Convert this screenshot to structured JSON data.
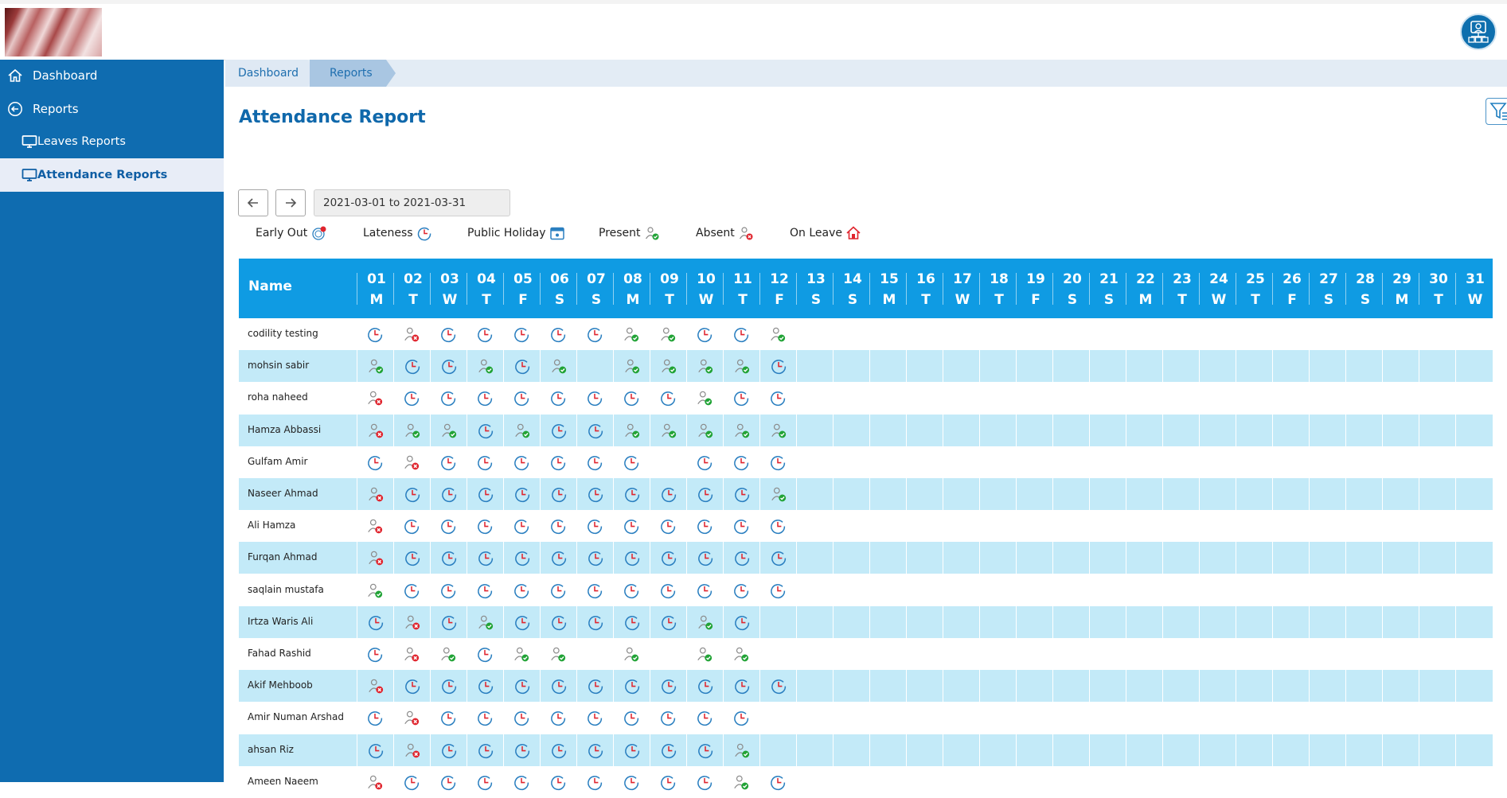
{
  "header": {
    "logo": "logo",
    "avatar": "user-avatar-icon"
  },
  "sidebar": {
    "items": [
      {
        "label": "Dashboard",
        "icon": "home-icon"
      },
      {
        "label": "Reports",
        "icon": "back-arrow-icon"
      },
      {
        "label": "Leaves Reports",
        "icon": "monitor-icon"
      },
      {
        "label": "Attendance Reports",
        "icon": "monitor-icon"
      }
    ]
  },
  "breadcrumb": [
    "Dashboard",
    "Reports"
  ],
  "page": {
    "title": "Attendance Report"
  },
  "date_range": "2021-03-01 to 2021-03-31",
  "legend": {
    "early_out": "Early Out",
    "lateness": "Lateness",
    "public_holiday": "Public Holiday",
    "present": "Present",
    "absent": "Absent",
    "on_leave": "On Leave"
  },
  "table": {
    "name_header": "Name",
    "days": [
      {
        "num": "01",
        "wd": "M"
      },
      {
        "num": "02",
        "wd": "T"
      },
      {
        "num": "03",
        "wd": "W"
      },
      {
        "num": "04",
        "wd": "T"
      },
      {
        "num": "05",
        "wd": "F"
      },
      {
        "num": "06",
        "wd": "S"
      },
      {
        "num": "07",
        "wd": "S"
      },
      {
        "num": "08",
        "wd": "M"
      },
      {
        "num": "09",
        "wd": "T"
      },
      {
        "num": "10",
        "wd": "W"
      },
      {
        "num": "11",
        "wd": "T"
      },
      {
        "num": "12",
        "wd": "F"
      },
      {
        "num": "13",
        "wd": "S"
      },
      {
        "num": "14",
        "wd": "S"
      },
      {
        "num": "15",
        "wd": "M"
      },
      {
        "num": "16",
        "wd": "T"
      },
      {
        "num": "17",
        "wd": "W"
      },
      {
        "num": "18",
        "wd": "T"
      },
      {
        "num": "19",
        "wd": "F"
      },
      {
        "num": "20",
        "wd": "S"
      },
      {
        "num": "21",
        "wd": "S"
      },
      {
        "num": "22",
        "wd": "M"
      },
      {
        "num": "23",
        "wd": "T"
      },
      {
        "num": "24",
        "wd": "W"
      },
      {
        "num": "25",
        "wd": "T"
      },
      {
        "num": "26",
        "wd": "F"
      },
      {
        "num": "27",
        "wd": "S"
      },
      {
        "num": "28",
        "wd": "S"
      },
      {
        "num": "29",
        "wd": "M"
      },
      {
        "num": "30",
        "wd": "T"
      },
      {
        "num": "31",
        "wd": "W"
      }
    ],
    "rows": [
      {
        "name": "codility testing",
        "statuses": [
          "L",
          "A",
          "L",
          "L",
          "L",
          "L",
          "L",
          "P",
          "P",
          "L",
          "L",
          "P"
        ]
      },
      {
        "name": "mohsin sabir",
        "statuses": [
          "P",
          "L",
          "L",
          "P",
          "L",
          "P",
          "",
          "P",
          "P",
          "P",
          "P",
          "L"
        ]
      },
      {
        "name": "roha naheed",
        "statuses": [
          "A",
          "L",
          "L",
          "L",
          "L",
          "L",
          "L",
          "L",
          "L",
          "P",
          "L",
          "L"
        ]
      },
      {
        "name": "Hamza Abbassi",
        "statuses": [
          "A",
          "P",
          "P",
          "L",
          "P",
          "L",
          "L",
          "P",
          "P",
          "P",
          "P",
          "P"
        ]
      },
      {
        "name": "Gulfam Amir",
        "statuses": [
          "L",
          "A",
          "L",
          "L",
          "L",
          "L",
          "L",
          "L",
          "",
          "L",
          "L",
          "L"
        ]
      },
      {
        "name": "Naseer Ahmad",
        "statuses": [
          "A",
          "L",
          "L",
          "L",
          "L",
          "L",
          "L",
          "L",
          "L",
          "L",
          "L",
          "P"
        ]
      },
      {
        "name": "Ali Hamza",
        "statuses": [
          "A",
          "L",
          "L",
          "L",
          "L",
          "L",
          "L",
          "L",
          "L",
          "L",
          "L",
          "L"
        ]
      },
      {
        "name": "Furqan Ahmad",
        "statuses": [
          "A",
          "L",
          "L",
          "L",
          "L",
          "L",
          "L",
          "L",
          "L",
          "L",
          "L",
          "L"
        ]
      },
      {
        "name": "saqlain mustafa",
        "statuses": [
          "P",
          "L",
          "L",
          "L",
          "L",
          "L",
          "L",
          "L",
          "L",
          "L",
          "L",
          "L"
        ]
      },
      {
        "name": "Irtza Waris Ali",
        "statuses": [
          "L",
          "A",
          "L",
          "P",
          "L",
          "L",
          "L",
          "L",
          "L",
          "P",
          "L",
          ""
        ]
      },
      {
        "name": "Fahad Rashid",
        "statuses": [
          "L",
          "A",
          "P",
          "L",
          "P",
          "P",
          "",
          "P",
          "",
          "P",
          "P",
          ""
        ]
      },
      {
        "name": "Akif Mehboob",
        "statuses": [
          "A",
          "L",
          "L",
          "L",
          "L",
          "L",
          "L",
          "L",
          "L",
          "L",
          "L",
          "L"
        ]
      },
      {
        "name": "Amir Numan Arshad",
        "statuses": [
          "L",
          "A",
          "L",
          "L",
          "L",
          "L",
          "L",
          "L",
          "L",
          "L",
          "L",
          ""
        ]
      },
      {
        "name": "ahsan Riz",
        "statuses": [
          "L",
          "A",
          "L",
          "L",
          "L",
          "L",
          "L",
          "L",
          "L",
          "L",
          "P",
          ""
        ]
      },
      {
        "name": "Ameen Naeem",
        "statuses": [
          "A",
          "L",
          "L",
          "L",
          "L",
          "L",
          "L",
          "L",
          "L",
          "L",
          "P",
          "L"
        ]
      }
    ]
  },
  "colors": {
    "sidebar": "#0f6cb0",
    "table_header": "#0f9be3",
    "row_alt": "#c3eaf8",
    "title": "#0f68ab",
    "present_check": "#21a336",
    "absent_x": "#e0252e",
    "lateness_clock": "#2a7fc0"
  }
}
